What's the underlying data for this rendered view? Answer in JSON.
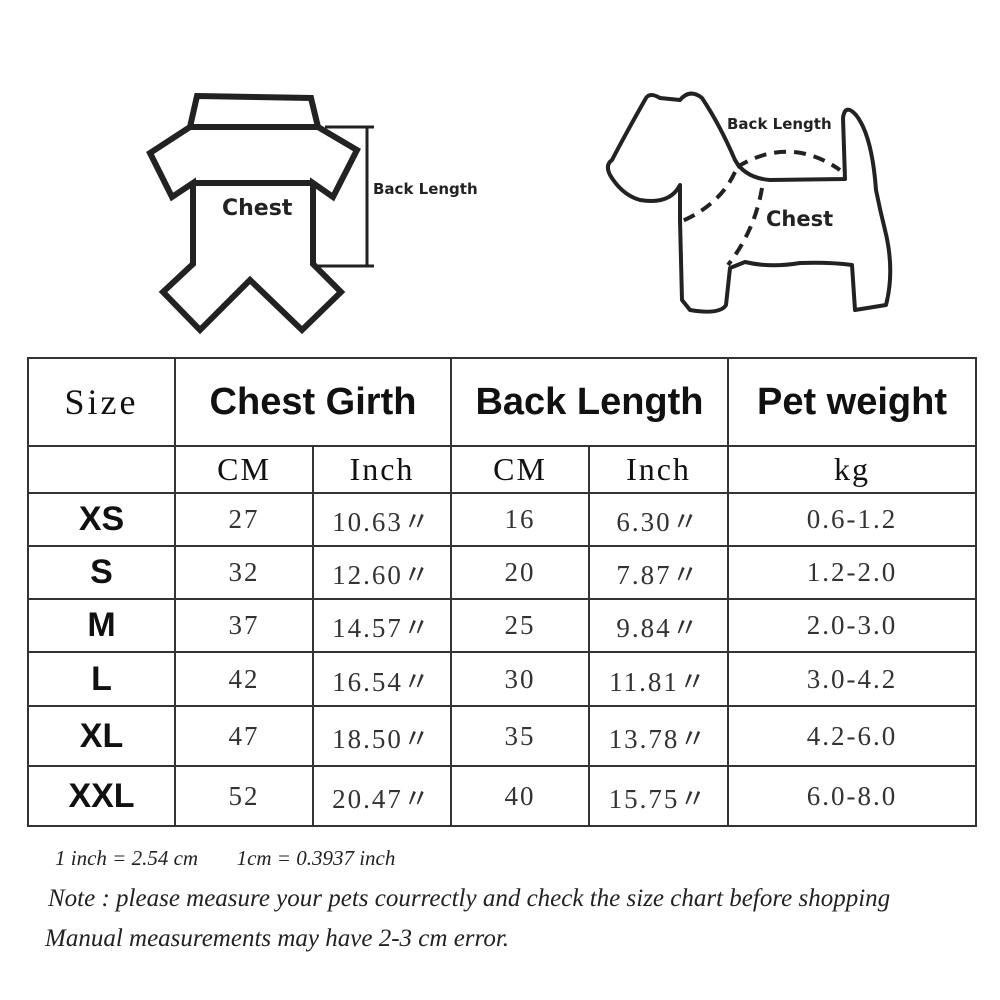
{
  "diagrams": {
    "garment": {
      "chest_label": "Chest",
      "back_length_label": "Back Length"
    },
    "dog": {
      "chest_label": "Chest",
      "back_length_label": "Back Length"
    }
  },
  "table": {
    "headers": {
      "size": "Size",
      "chest_girth": "Chest Girth",
      "back_length": "Back Length",
      "pet_weight": "Pet weight"
    },
    "subheaders": {
      "chest_cm": "CM",
      "chest_inch": "Inch",
      "back_cm": "CM",
      "back_inch": "Inch",
      "weight_unit": "kg"
    },
    "rows": [
      {
        "size": "XS",
        "chest_cm": "27",
        "chest_inch": "10.63〃",
        "back_cm": "16",
        "back_inch": "6.30〃",
        "weight": "0.6-1.2"
      },
      {
        "size": "S",
        "chest_cm": "32",
        "chest_inch": "12.60〃",
        "back_cm": "20",
        "back_inch": "7.87〃",
        "weight": "1.2-2.0"
      },
      {
        "size": "M",
        "chest_cm": "37",
        "chest_inch": "14.57〃",
        "back_cm": "25",
        "back_inch": "9.84〃",
        "weight": "2.0-3.0"
      },
      {
        "size": "L",
        "chest_cm": "42",
        "chest_inch": "16.54〃",
        "back_cm": "30",
        "back_inch": "11.81〃",
        "weight": "3.0-4.2"
      },
      {
        "size": "XL",
        "chest_cm": "47",
        "chest_inch": "18.50〃",
        "back_cm": "35",
        "back_inch": "13.78〃",
        "weight": "4.2-6.0"
      },
      {
        "size": "XXL",
        "chest_cm": "52",
        "chest_inch": "20.47〃",
        "back_cm": "40",
        "back_inch": "15.75〃",
        "weight": "6.0-8.0"
      }
    ]
  },
  "notes": {
    "conversion_inch": "1 inch = 2.54 cm",
    "conversion_cm": "1cm = 0.3937 inch",
    "note": "Note : please measure your pets courrectly and check the size chart before shopping",
    "error": "Manual measurements may have 2-3 cm error."
  }
}
